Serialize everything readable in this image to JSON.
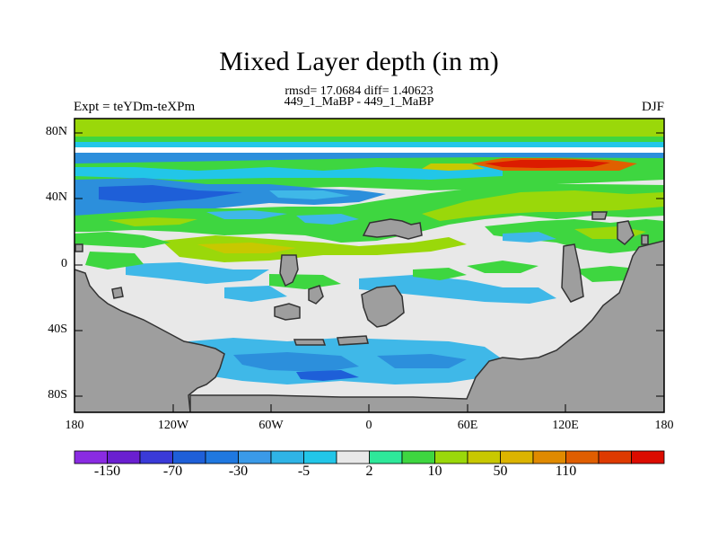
{
  "title": "Mixed Layer depth (in m)",
  "stats_line1": "rmsd= 17.0684 diff= 1.40623",
  "stats_line2": "449_1_MaBP - 449_1_MaBP",
  "left_label": "Expt = teYDm-teXPm",
  "right_label": "DJF",
  "y_ticks": [
    "80N",
    "40N",
    "0",
    "40S",
    "80S"
  ],
  "x_ticks": [
    "180",
    "120W",
    "60W",
    "0",
    "60E",
    "120E",
    "180"
  ],
  "colorbar": {
    "colors": [
      "#8a2be2",
      "#6a1fd0",
      "#3a3ad8",
      "#1e5fd8",
      "#1f78e0",
      "#3a9ae8",
      "#2fb4e6",
      "#22c6e8",
      "#e8e8e8",
      "#2ee89a",
      "#3ed640",
      "#9ad80a",
      "#c8c800",
      "#dcb400",
      "#e08a00",
      "#e05e00",
      "#de3a00",
      "#dc0c00"
    ],
    "labels": [
      "-150",
      "-70",
      "-30",
      "-5",
      "2",
      "10",
      "50",
      "110"
    ]
  },
  "colors": {
    "land": "#9e9e9e",
    "near_zero": "#e8e8e8",
    "blue": "#2c8fdc",
    "light_blue": "#3fb8e8",
    "cyan": "#22cce6",
    "green": "#3ed640",
    "yellow_green": "#9ad80a",
    "yellow": "#c8c800",
    "red": "#dc1c00",
    "orange": "#e06000"
  }
}
